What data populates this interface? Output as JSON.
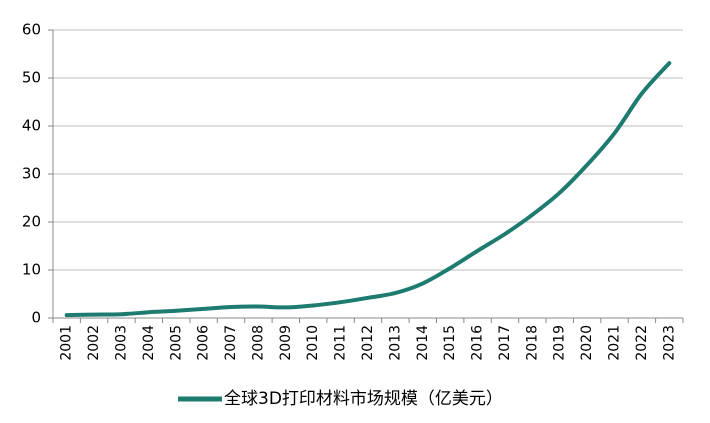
{
  "chart_data": {
    "type": "line",
    "title": "",
    "xlabel": "",
    "ylabel": "",
    "x": [
      "2001",
      "2002",
      "2003",
      "2004",
      "2005",
      "2006",
      "2007",
      "2008",
      "2009",
      "2010",
      "2011",
      "2012",
      "2013",
      "2014",
      "2015",
      "2016",
      "2017",
      "2018",
      "2019",
      "2020",
      "2021",
      "2022",
      "2023"
    ],
    "series": [
      {
        "name": "全球3D打印材料市场规模（亿美元）",
        "color": "#1e7b6f",
        "values": [
          0.6,
          0.7,
          0.8,
          1.2,
          1.5,
          1.9,
          2.3,
          2.4,
          2.2,
          2.6,
          3.3,
          4.2,
          5.2,
          7.2,
          10.4,
          14.0,
          17.5,
          21.5,
          26.1,
          31.9,
          38.5,
          46.8,
          53.1
        ]
      }
    ],
    "ylim": [
      0,
      60
    ],
    "yticks": [
      0,
      10,
      20,
      30,
      40,
      50,
      60
    ],
    "grid": true,
    "legend_position": "bottom"
  }
}
